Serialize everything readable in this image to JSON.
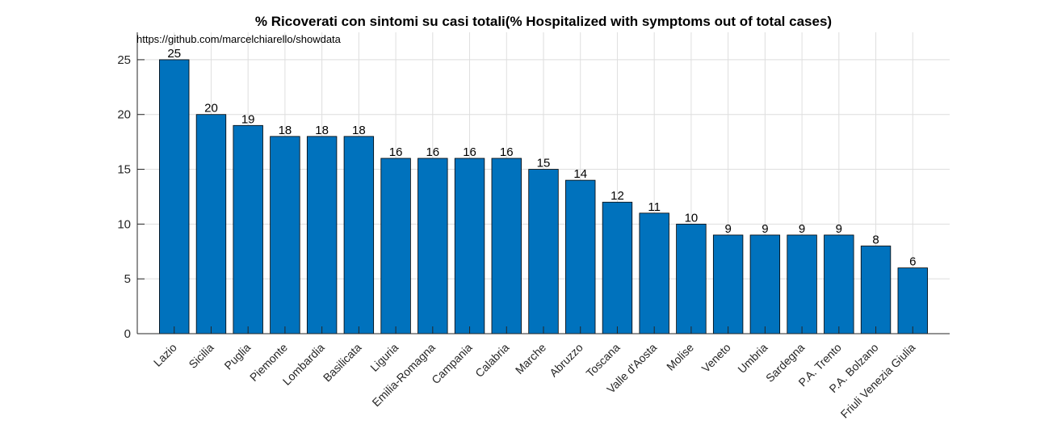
{
  "title": "% Ricoverati con sintomi su casi totali(% Hospitalized with symptoms out of total cases)",
  "watermark": "https://github.com/marcelchiarello/showdata",
  "colors": {
    "bar": "#0072BD",
    "bar_edge": "#000000",
    "grid": "#dedede",
    "axis": "#262626"
  },
  "chart_data": {
    "type": "bar",
    "categories": [
      "Lazio",
      "Sicilia",
      "Puglia",
      "Piemonte",
      "Lombardia",
      "Basilicata",
      "Liguria",
      "Emilia-Romagna",
      "Campania",
      "Calabria",
      "Marche",
      "Abruzzo",
      "Toscana",
      "Valle d'Aosta",
      "Molise",
      "Veneto",
      "Umbria",
      "Sardegna",
      "P.A. Trento",
      "P.A. Bolzano",
      "Friuli Venezia Giulia"
    ],
    "values": [
      25,
      20,
      19,
      18,
      18,
      18,
      16,
      16,
      16,
      16,
      15,
      14,
      12,
      11,
      10,
      9,
      9,
      9,
      9,
      8,
      6
    ],
    "ylim": [
      0,
      27.5
    ],
    "yticks": [
      0,
      5,
      10,
      15,
      20,
      25
    ],
    "grid": true,
    "data_labels": true
  }
}
